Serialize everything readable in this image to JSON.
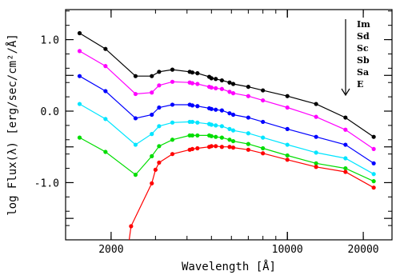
{
  "chart_data": {
    "type": "line",
    "xlabel": "Wavelength [Å]",
    "ylabel": "log Flux(λ) [erg/sec/cm²/Å]",
    "x_scale": "log",
    "xlim": [
      1320,
      26000
    ],
    "ylim": [
      -1.8,
      1.42
    ],
    "x_ticks": [
      2000,
      10000,
      20000
    ],
    "x_tick_labels": [
      "2000",
      "10000",
      "20000"
    ],
    "y_ticks": [
      1.0,
      0.0,
      -1.0
    ],
    "y_tick_labels": [
      "1.0",
      "0.0",
      "-1.0"
    ],
    "legend": {
      "placement": "top-right",
      "entries": [
        "Im",
        "Sd",
        "Sc",
        "Sb",
        "Sa",
        "E"
      ],
      "arrow": "down"
    },
    "series": [
      {
        "color": "#000000",
        "x": [
          1500,
          1900,
          2500,
          2900,
          3100,
          3500,
          4100,
          4200,
          4400,
          4900,
          5000,
          5200,
          5500,
          5900,
          6100,
          7000,
          8000,
          10000,
          13000,
          17000,
          22000
        ],
        "y": [
          1.09,
          0.87,
          0.49,
          0.49,
          0.55,
          0.58,
          0.55,
          0.54,
          0.53,
          0.48,
          0.46,
          0.45,
          0.43,
          0.4,
          0.38,
          0.34,
          0.29,
          0.21,
          0.1,
          -0.09,
          -0.36
        ]
      },
      {
        "color": "#ff00ff",
        "x": [
          1500,
          1900,
          2500,
          2900,
          3100,
          3500,
          4100,
          4200,
          4400,
          4900,
          5000,
          5200,
          5500,
          5900,
          6100,
          7000,
          8000,
          10000,
          13000,
          17000,
          22000
        ],
        "y": [
          0.84,
          0.63,
          0.24,
          0.26,
          0.36,
          0.41,
          0.4,
          0.39,
          0.38,
          0.34,
          0.33,
          0.32,
          0.31,
          0.27,
          0.25,
          0.21,
          0.15,
          0.05,
          -0.08,
          -0.26,
          -0.53
        ]
      },
      {
        "color": "#0000ff",
        "x": [
          1500,
          1900,
          2500,
          2900,
          3100,
          3500,
          4100,
          4200,
          4400,
          4900,
          5000,
          5200,
          5500,
          5900,
          6100,
          7000,
          8000,
          10000,
          13000,
          17000,
          22000
        ],
        "y": [
          0.49,
          0.28,
          -0.1,
          -0.05,
          0.05,
          0.09,
          0.09,
          0.08,
          0.07,
          0.04,
          0.03,
          0.02,
          0.01,
          -0.03,
          -0.05,
          -0.09,
          -0.15,
          -0.25,
          -0.36,
          -0.47,
          -0.73
        ]
      },
      {
        "color": "#00e5ff",
        "x": [
          1500,
          1900,
          2500,
          2900,
          3100,
          3500,
          4100,
          4200,
          4400,
          4900,
          5000,
          5200,
          5500,
          5900,
          6100,
          7000,
          8000,
          10000,
          13000,
          17000,
          22000
        ],
        "y": [
          0.1,
          -0.11,
          -0.47,
          -0.32,
          -0.21,
          -0.16,
          -0.15,
          -0.15,
          -0.16,
          -0.18,
          -0.19,
          -0.2,
          -0.21,
          -0.25,
          -0.27,
          -0.31,
          -0.37,
          -0.47,
          -0.58,
          -0.66,
          -0.88
        ]
      },
      {
        "color": "#00dd00",
        "x": [
          1500,
          1900,
          2500,
          2900,
          3100,
          3500,
          4100,
          4200,
          4400,
          4900,
          5000,
          5200,
          5500,
          5900,
          6100,
          7000,
          8000,
          10000,
          13000,
          17000,
          22000
        ],
        "y": [
          -0.37,
          -0.57,
          -0.89,
          -0.63,
          -0.49,
          -0.4,
          -0.34,
          -0.34,
          -0.34,
          -0.34,
          -0.35,
          -0.36,
          -0.37,
          -0.4,
          -0.42,
          -0.46,
          -0.52,
          -0.62,
          -0.73,
          -0.8,
          -0.98
        ]
      },
      {
        "color": "#ff0000",
        "x": [
          2400,
          2900,
          3000,
          3100,
          3500,
          4100,
          4200,
          4400,
          4900,
          5000,
          5200,
          5500,
          5900,
          6100,
          7000,
          8000,
          10000,
          13000,
          17000,
          22000
        ],
        "y": [
          -1.61,
          -1.01,
          -0.82,
          -0.72,
          -0.6,
          -0.54,
          -0.53,
          -0.52,
          -0.5,
          -0.49,
          -0.49,
          -0.5,
          -0.5,
          -0.51,
          -0.54,
          -0.59,
          -0.68,
          -0.78,
          -0.85,
          -1.07
        ]
      }
    ],
    "grid": false
  }
}
